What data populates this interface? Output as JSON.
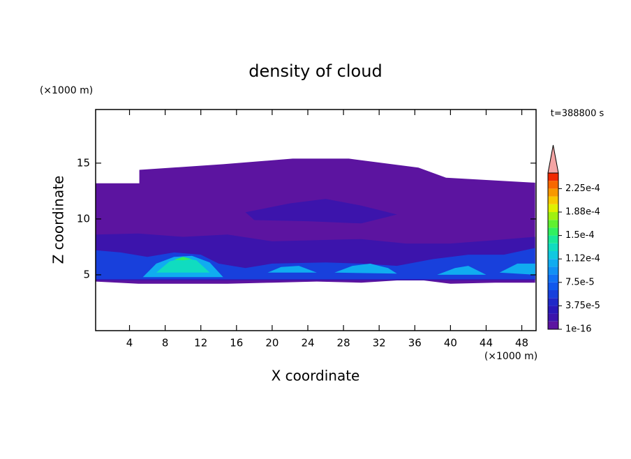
{
  "chart_data": {
    "type": "contour",
    "title": "density of cloud",
    "x_label": "X coordinate",
    "y_label": "Z coordinate",
    "x_unit": "(×1000 m)",
    "y_unit": "(×1000 m)",
    "annotation": "t=388800 s",
    "xlim": [
      0.2,
      49.6
    ],
    "ylim": [
      0,
      19.8
    ],
    "xticks": [
      4,
      8,
      12,
      16,
      20,
      24,
      28,
      32,
      36,
      40,
      44,
      48
    ],
    "yticks": [
      5,
      10,
      15
    ],
    "clim": [
      1e-16,
      0.00025
    ],
    "colorbar_ticks": [
      {
        "value": 1e-16,
        "label": "1e-16"
      },
      {
        "value": 3.75e-05,
        "label": "3.75e-5"
      },
      {
        "value": 7.5e-05,
        "label": "7.5e-5"
      },
      {
        "value": 0.0001125,
        "label": "1.12e-4"
      },
      {
        "value": 0.00015,
        "label": "1.5e-4"
      },
      {
        "value": 0.0001875,
        "label": "1.88e-4"
      },
      {
        "value": 0.000225,
        "label": "2.25e-4"
      }
    ],
    "colors": [
      "#5c14a0",
      "#3c14ac",
      "#2a18b8",
      "#2028c8",
      "#1840dc",
      "#1058ec",
      "#1070f4",
      "#1090f4",
      "#10acf0",
      "#10c8e0",
      "#10dcc0",
      "#18e898",
      "#30f060",
      "#60f030",
      "#a0f010",
      "#e0f000",
      "#f8c800",
      "#f89800",
      "#f86800",
      "#f02800"
    ],
    "over_color": "#f4a4a4",
    "contours": [
      {
        "value": 1e-06,
        "x": [
          0.2,
          5.1,
          5.1,
          14.5,
          22.3,
          28.6,
          36.4,
          39.5,
          49.5,
          49.5,
          45,
          40,
          36,
          30,
          25,
          20,
          15,
          10,
          5,
          0.2
        ],
        "z": [
          13.2,
          13.2,
          14.4,
          14.9,
          15.4,
          15.4,
          14.6,
          13.7,
          13.25,
          4.3,
          4.3,
          4.2,
          4.6,
          4.3,
          4.4,
          4.3,
          4.2,
          4.2,
          4.2,
          4.4
        ]
      },
      {
        "value": 2e-05,
        "x": [
          0.2,
          5,
          10,
          15,
          20,
          25,
          30,
          35,
          40,
          45,
          49.5,
          49.5,
          0.2
        ],
        "z": [
          8.6,
          8.7,
          8.4,
          8.6,
          8.0,
          8.1,
          8.2,
          7.8,
          7.8,
          8.1,
          8.4,
          4.5,
          4.5
        ]
      },
      {
        "value": 2e-05,
        "x": [
          17,
          22,
          26,
          30,
          34,
          30,
          24,
          18
        ],
        "z": [
          10.6,
          11.4,
          11.8,
          11.2,
          10.4,
          9.6,
          9.8,
          9.9
        ]
      },
      {
        "value": 6e-05,
        "x": [
          0.2,
          3,
          6,
          9,
          12,
          14,
          17,
          20,
          26,
          30,
          34,
          38,
          42,
          46,
          49.5,
          49.5,
          0.2
        ],
        "z": [
          7.2,
          7.0,
          6.6,
          7.0,
          6.8,
          6.0,
          5.6,
          6.0,
          6.1,
          6.0,
          5.8,
          6.4,
          6.8,
          6.8,
          7.4,
          4.6,
          4.6
        ]
      },
      {
        "value": 0.000105,
        "x": [
          5.5,
          7,
          9,
          11,
          13,
          14.5,
          5.5
        ],
        "z": [
          4.8,
          6.0,
          6.6,
          6.7,
          6.1,
          4.8,
          4.8
        ]
      },
      {
        "value": 0.000105,
        "x": [
          19.5,
          21,
          23,
          25,
          19.5
        ],
        "z": [
          5.2,
          5.7,
          5.8,
          5.2,
          5.2
        ]
      },
      {
        "value": 0.000105,
        "x": [
          27,
          29,
          31,
          33,
          34,
          27
        ],
        "z": [
          5.2,
          5.8,
          6.0,
          5.6,
          5.1,
          5.2
        ]
      },
      {
        "value": 0.000105,
        "x": [
          38.5,
          40.5,
          42,
          44,
          38.5
        ],
        "z": [
          5.0,
          5.6,
          5.8,
          5.0,
          5.0
        ]
      },
      {
        "value": 0.000105,
        "x": [
          45.5,
          47.5,
          49.5,
          49.5,
          45.5
        ],
        "z": [
          5.2,
          6.0,
          6.0,
          5.0,
          5.2
        ]
      },
      {
        "value": 0.00013,
        "x": [
          7,
          8.5,
          10,
          11.5,
          13,
          7
        ],
        "z": [
          5.2,
          6.2,
          6.5,
          6.3,
          5.2,
          5.2
        ]
      },
      {
        "value": 0.00016,
        "x": [
          9,
          10,
          11,
          10
        ],
        "z": [
          6.35,
          6.6,
          6.4,
          6.3
        ]
      }
    ]
  }
}
